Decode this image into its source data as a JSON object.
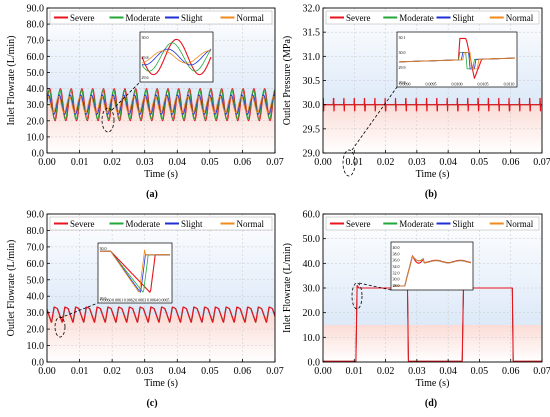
{
  "figure": {
    "panel_labels": [
      "(a)",
      "(b)",
      "(c)",
      "(d)"
    ]
  },
  "colors": {
    "severe": "#e8141e",
    "moderate": "#22a83a",
    "slight": "#1f2fd6",
    "normal": "#f08a1c"
  },
  "chart_data": [
    {
      "id": "a",
      "type": "line",
      "xlabel": "Time (s)",
      "ylabel": "Inlet Flowrate (L/min)",
      "xlim": [
        0,
        0.07
      ],
      "ylim": [
        0,
        90
      ],
      "xticks": [
        "0.00",
        "0.01",
        "0.02",
        "0.03",
        "0.04",
        "0.05",
        "0.06",
        "0.07"
      ],
      "yticks": [
        "0.0",
        "10.0",
        "20.0",
        "30.0",
        "40.0",
        "50.0",
        "60.0",
        "70.0",
        "80.0",
        "90.0"
      ],
      "legend": [
        "Severe",
        "Moderate",
        "Slight",
        "Normal"
      ],
      "legend_position": "top",
      "waveform": "sinusoidal",
      "period_s": 0.0033,
      "series": [
        {
          "name": "Severe",
          "mean": 30,
          "amplitude": 10
        },
        {
          "name": "Moderate",
          "mean": 30,
          "amplitude": 9
        },
        {
          "name": "Slight",
          "mean": 30,
          "amplitude": 6
        },
        {
          "name": "Normal",
          "mean": 30,
          "amplitude": 5
        }
      ],
      "inset": {
        "yticks": [
          "30.0",
          "29.8",
          "29.6"
        ]
      }
    },
    {
      "id": "b",
      "type": "line",
      "xlabel": "Time (s)",
      "ylabel": "Outlet Pressure (MPa)",
      "xlim": [
        0,
        0.07
      ],
      "ylim": [
        29,
        32
      ],
      "xticks": [
        "0.00",
        "0.01",
        "0.02",
        "0.03",
        "0.04",
        "0.05",
        "0.06",
        "0.07"
      ],
      "yticks": [
        "29.0",
        "29.5",
        "30.0",
        "30.5",
        "31.0",
        "31.5",
        "32.0"
      ],
      "legend": [
        "Severe",
        "Moderate",
        "Slight",
        "Normal"
      ],
      "legend_position": "top",
      "waveform": "constant with periodic spikes",
      "baseline": 30.0,
      "spike_period_s": 0.0033,
      "inset": {
        "xticks": [
          "0.0090",
          "0.0095",
          "0.0100",
          "0.0105",
          "0.0110"
        ],
        "yticks": [
          "30.1",
          "30.0",
          "29.9",
          "29.8"
        ]
      }
    },
    {
      "id": "c",
      "type": "line",
      "xlabel": "Time (s)",
      "ylabel": "Outlet Flowrate (L/min)",
      "xlim": [
        0,
        0.07
      ],
      "ylim": [
        0,
        90
      ],
      "xticks": [
        "0.00",
        "0.01",
        "0.02",
        "0.03",
        "0.04",
        "0.05",
        "0.06",
        "0.07"
      ],
      "yticks": [
        "0.0",
        "10.0",
        "20.0",
        "30.0",
        "40.0",
        "50.0",
        "60.0",
        "70.0",
        "80.0",
        "90.0"
      ],
      "legend": [
        "Severe",
        "Moderate",
        "Slight",
        "Normal"
      ],
      "legend_position": "top",
      "waveform": "periodic pulses",
      "range": [
        24,
        33
      ],
      "period_s": 0.0033,
      "inset": {
        "xticks": [
          "0.0060",
          "0.0061",
          "0.0062",
          "0.0063",
          "0.0064",
          "0.0065"
        ],
        "yticks": [
          "30.0",
          "29.5"
        ]
      }
    },
    {
      "id": "d",
      "type": "line",
      "xlabel": "Time (s)",
      "ylabel": "Inlet Flowrate (L/min)",
      "xlim": [
        0,
        0.07
      ],
      "ylim": [
        0,
        60
      ],
      "xticks": [
        "0.00",
        "0.01",
        "0.02",
        "0.03",
        "0.04",
        "0.05",
        "0.06",
        "0.07"
      ],
      "yticks": [
        "0.0",
        "10.0",
        "20.0",
        "30.0",
        "40.0",
        "50.0",
        "60.0"
      ],
      "legend": [
        "Severe",
        "Moderate",
        "Slight",
        "Normal"
      ],
      "legend_position": "top",
      "waveform": "two rectangular pulses",
      "pulses": [
        {
          "start": 0.0105,
          "end": 0.027,
          "level": 30
        },
        {
          "start": 0.0445,
          "end": 0.0605,
          "level": 30
        }
      ],
      "inset": {
        "yticks": [
          "40.0",
          "38.0",
          "36.0",
          "34.0",
          "32.0",
          "30.0",
          "28.0"
        ]
      }
    }
  ]
}
